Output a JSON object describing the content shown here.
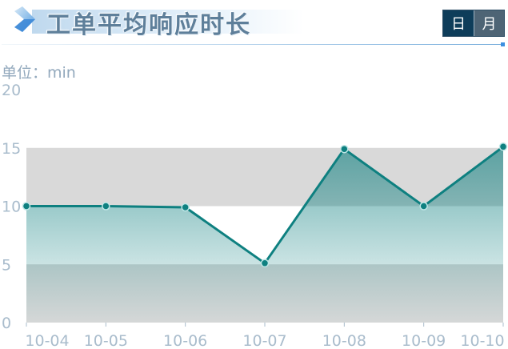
{
  "header": {
    "title": "工单平均响应时长",
    "toggle": {
      "day_label": "日",
      "month_label": "月",
      "active": "day"
    }
  },
  "unit_label": "单位：min",
  "colors": {
    "line": "#0e8080",
    "band": "#d9d9d9",
    "tick_text": "#a9bccc",
    "toggle_active": "#0e3d5a",
    "toggle_inactive": "#4e6475"
  },
  "chart_data": {
    "type": "area",
    "categories": [
      "10-04",
      "10-05",
      "10-06",
      "10-07",
      "10-08",
      "10-09",
      "10-10"
    ],
    "series": [
      {
        "values": [
          10,
          10,
          9.9,
          5.1,
          14.9,
          10,
          15.1
        ]
      }
    ],
    "ylim": [
      0,
      20
    ],
    "yticks": [
      0,
      5,
      10,
      15,
      20
    ],
    "grid": "alternating horizontal bands",
    "legend": "none"
  }
}
